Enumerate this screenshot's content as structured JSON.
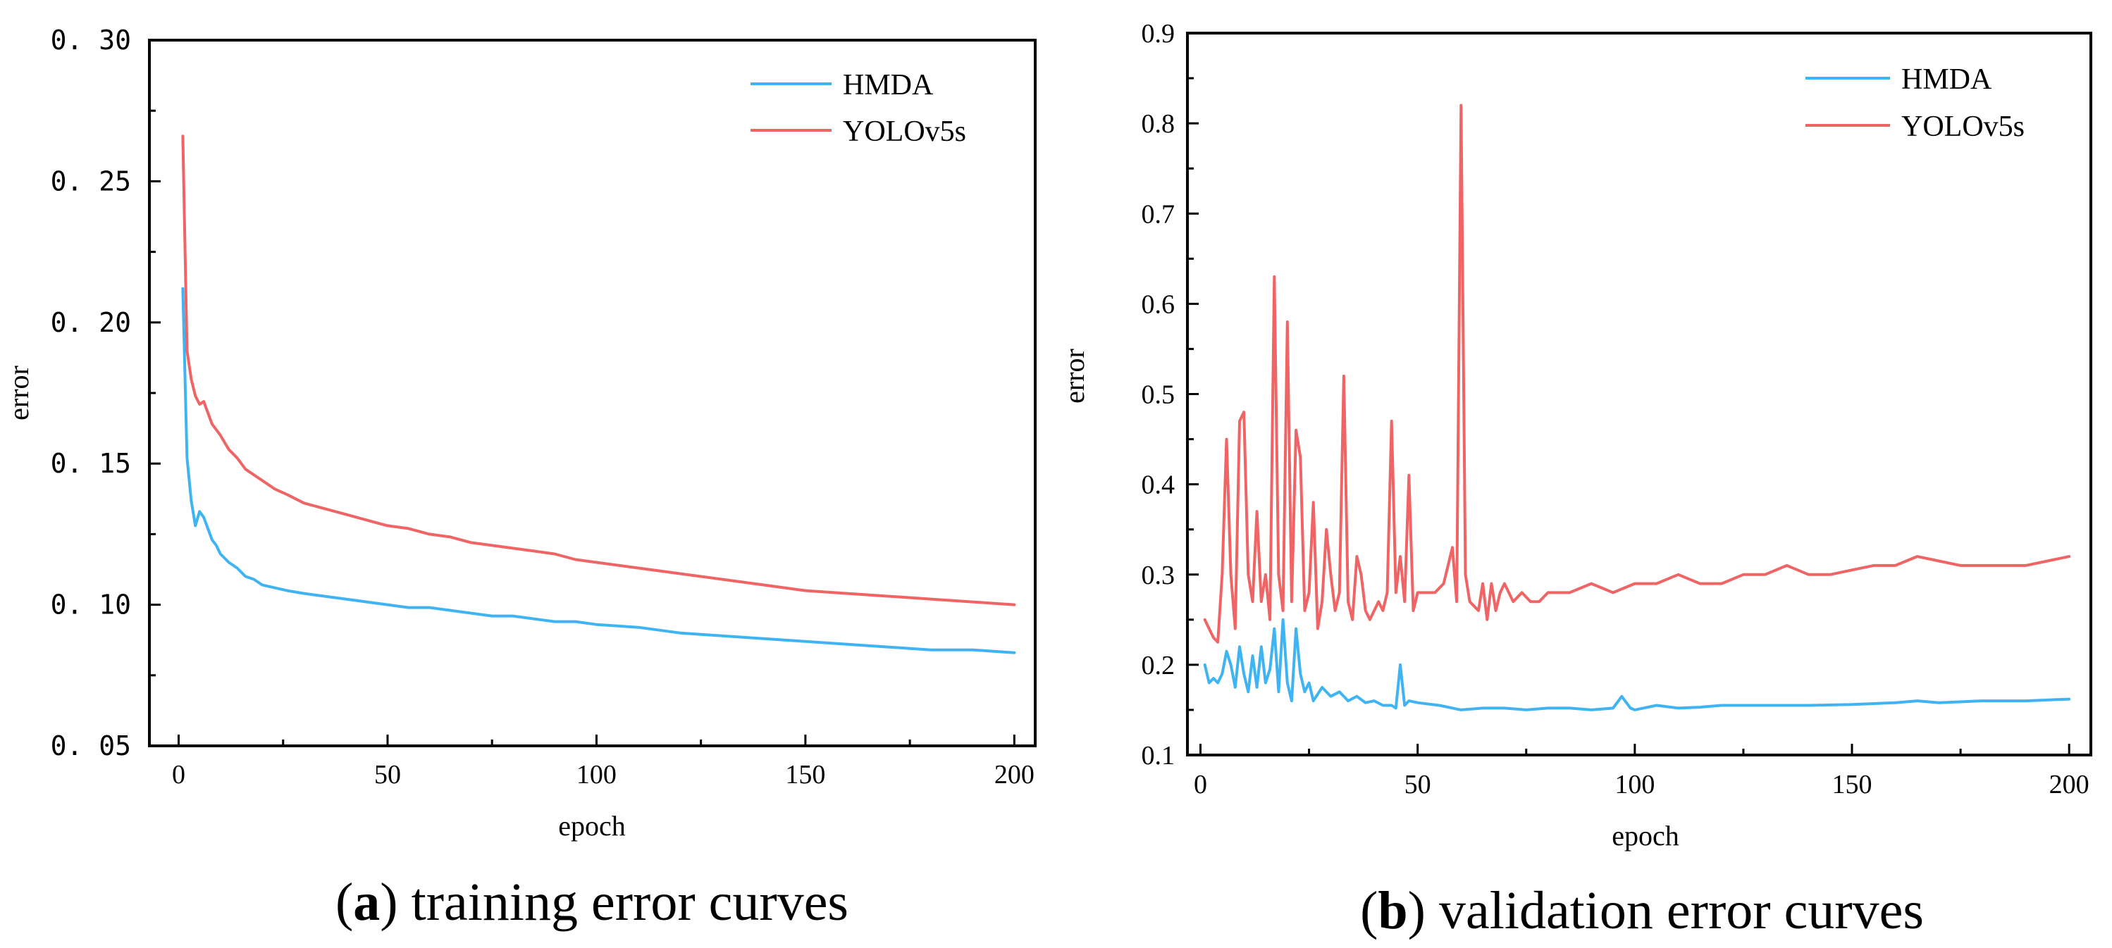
{
  "colors": {
    "hmda": "#40b4f2",
    "yolo": "#ef6464",
    "axis": "#000000"
  },
  "chart_data": [
    {
      "type": "line",
      "caption_letter": "a",
      "caption_text": ") training error curves",
      "caption_open": "(",
      "xlabel": "epoch",
      "ylabel": "error",
      "xlim": [
        -7,
        205
      ],
      "ylim": [
        0.05,
        0.3
      ],
      "xticks": [
        0,
        50,
        100,
        150,
        200
      ],
      "yticks": [
        0.05,
        0.1,
        0.15,
        0.2,
        0.25,
        0.3
      ],
      "ytick_labels": [
        "0. 05",
        "0. 10",
        "0. 15",
        "0. 20",
        "0. 25",
        "0. 30"
      ],
      "legend_position": "top-right",
      "series": [
        {
          "name": "HMDA",
          "color_key": "hmda",
          "x": [
            1,
            2,
            3,
            4,
            5,
            6,
            7,
            8,
            9,
            10,
            12,
            14,
            16,
            18,
            20,
            23,
            26,
            30,
            35,
            40,
            45,
            50,
            55,
            60,
            65,
            70,
            75,
            80,
            85,
            90,
            95,
            100,
            110,
            120,
            130,
            140,
            150,
            160,
            170,
            180,
            190,
            200
          ],
          "y": [
            0.212,
            0.152,
            0.137,
            0.128,
            0.133,
            0.131,
            0.127,
            0.123,
            0.121,
            0.118,
            0.115,
            0.113,
            0.11,
            0.109,
            0.107,
            0.106,
            0.105,
            0.104,
            0.103,
            0.102,
            0.101,
            0.1,
            0.099,
            0.099,
            0.098,
            0.097,
            0.096,
            0.096,
            0.095,
            0.094,
            0.094,
            0.093,
            0.092,
            0.09,
            0.089,
            0.088,
            0.087,
            0.086,
            0.085,
            0.084,
            0.084,
            0.083
          ]
        },
        {
          "name": "YOLOv5s",
          "color_key": "yolo",
          "x": [
            1,
            2,
            3,
            4,
            5,
            6,
            7,
            8,
            9,
            10,
            12,
            14,
            16,
            18,
            20,
            23,
            26,
            30,
            35,
            40,
            45,
            50,
            55,
            60,
            65,
            70,
            75,
            80,
            85,
            90,
            95,
            100,
            110,
            120,
            130,
            140,
            150,
            160,
            170,
            180,
            190,
            200
          ],
          "y": [
            0.266,
            0.19,
            0.18,
            0.174,
            0.171,
            0.172,
            0.168,
            0.164,
            0.162,
            0.16,
            0.155,
            0.152,
            0.148,
            0.146,
            0.144,
            0.141,
            0.139,
            0.136,
            0.134,
            0.132,
            0.13,
            0.128,
            0.127,
            0.125,
            0.124,
            0.122,
            0.121,
            0.12,
            0.119,
            0.118,
            0.116,
            0.115,
            0.113,
            0.111,
            0.109,
            0.107,
            0.105,
            0.104,
            0.103,
            0.102,
            0.101,
            0.1
          ]
        }
      ]
    },
    {
      "type": "line",
      "caption_letter": "b",
      "caption_text": ") validation error curves",
      "caption_open": "(",
      "xlabel": "epoch",
      "ylabel": "error",
      "xlim": [
        -3,
        205
      ],
      "ylim": [
        0.1,
        0.9
      ],
      "xticks": [
        0,
        50,
        100,
        150,
        200
      ],
      "yticks": [
        0.1,
        0.2,
        0.3,
        0.4,
        0.5,
        0.6,
        0.7,
        0.8,
        0.9
      ],
      "ytick_labels": [
        "0.1",
        "0.2",
        "0.3",
        "0.4",
        "0.5",
        "0.6",
        "0.7",
        "0.8",
        "0.9"
      ],
      "legend_position": "top-right",
      "series": [
        {
          "name": "HMDA",
          "color_key": "hmda",
          "x": [
            1,
            2,
            3,
            4,
            5,
            6,
            7,
            8,
            9,
            10,
            11,
            12,
            13,
            14,
            15,
            16,
            17,
            18,
            19,
            20,
            21,
            22,
            23,
            24,
            25,
            26,
            28,
            30,
            32,
            34,
            36,
            38,
            40,
            42,
            44,
            45,
            46,
            47,
            48,
            50,
            55,
            60,
            65,
            70,
            75,
            80,
            85,
            90,
            95,
            97,
            99,
            100,
            105,
            110,
            115,
            120,
            125,
            130,
            140,
            150,
            160,
            165,
            170,
            180,
            190,
            200
          ],
          "y": [
            0.2,
            0.18,
            0.185,
            0.18,
            0.19,
            0.215,
            0.2,
            0.175,
            0.22,
            0.19,
            0.17,
            0.21,
            0.175,
            0.22,
            0.18,
            0.195,
            0.24,
            0.17,
            0.25,
            0.18,
            0.16,
            0.24,
            0.19,
            0.17,
            0.18,
            0.16,
            0.175,
            0.165,
            0.17,
            0.16,
            0.165,
            0.158,
            0.16,
            0.155,
            0.155,
            0.152,
            0.2,
            0.155,
            0.16,
            0.158,
            0.155,
            0.15,
            0.152,
            0.152,
            0.15,
            0.152,
            0.152,
            0.15,
            0.152,
            0.165,
            0.152,
            0.15,
            0.155,
            0.152,
            0.153,
            0.155,
            0.155,
            0.155,
            0.155,
            0.156,
            0.158,
            0.16,
            0.158,
            0.16,
            0.16,
            0.162
          ]
        },
        {
          "name": "YOLOv5s",
          "color_key": "yolo",
          "x": [
            1,
            2,
            3,
            4,
            5,
            6,
            7,
            8,
            9,
            10,
            11,
            12,
            13,
            14,
            15,
            16,
            17,
            18,
            19,
            20,
            21,
            22,
            23,
            24,
            25,
            26,
            27,
            28,
            29,
            30,
            31,
            32,
            33,
            34,
            35,
            36,
            37,
            38,
            39,
            40,
            41,
            42,
            43,
            44,
            45,
            46,
            47,
            48,
            49,
            50,
            52,
            54,
            56,
            58,
            59,
            60,
            61,
            62,
            64,
            65,
            66,
            67,
            68,
            69,
            70,
            72,
            74,
            76,
            78,
            80,
            85,
            90,
            95,
            100,
            105,
            110,
            115,
            120,
            125,
            130,
            135,
            140,
            145,
            150,
            155,
            160,
            165,
            170,
            175,
            180,
            185,
            190,
            195,
            200
          ],
          "y": [
            0.25,
            0.24,
            0.23,
            0.225,
            0.3,
            0.45,
            0.3,
            0.24,
            0.47,
            0.48,
            0.3,
            0.27,
            0.37,
            0.27,
            0.3,
            0.25,
            0.63,
            0.3,
            0.26,
            0.58,
            0.27,
            0.46,
            0.43,
            0.26,
            0.28,
            0.38,
            0.24,
            0.27,
            0.35,
            0.3,
            0.26,
            0.28,
            0.52,
            0.27,
            0.25,
            0.32,
            0.3,
            0.26,
            0.25,
            0.26,
            0.27,
            0.26,
            0.28,
            0.47,
            0.28,
            0.32,
            0.27,
            0.41,
            0.26,
            0.28,
            0.28,
            0.28,
            0.29,
            0.33,
            0.27,
            0.82,
            0.3,
            0.27,
            0.26,
            0.29,
            0.25,
            0.29,
            0.26,
            0.28,
            0.29,
            0.27,
            0.28,
            0.27,
            0.27,
            0.28,
            0.28,
            0.29,
            0.28,
            0.29,
            0.29,
            0.3,
            0.29,
            0.29,
            0.3,
            0.3,
            0.31,
            0.3,
            0.3,
            0.305,
            0.31,
            0.31,
            0.32,
            0.315,
            0.31,
            0.31,
            0.31,
            0.31,
            0.315,
            0.32
          ]
        }
      ]
    }
  ]
}
